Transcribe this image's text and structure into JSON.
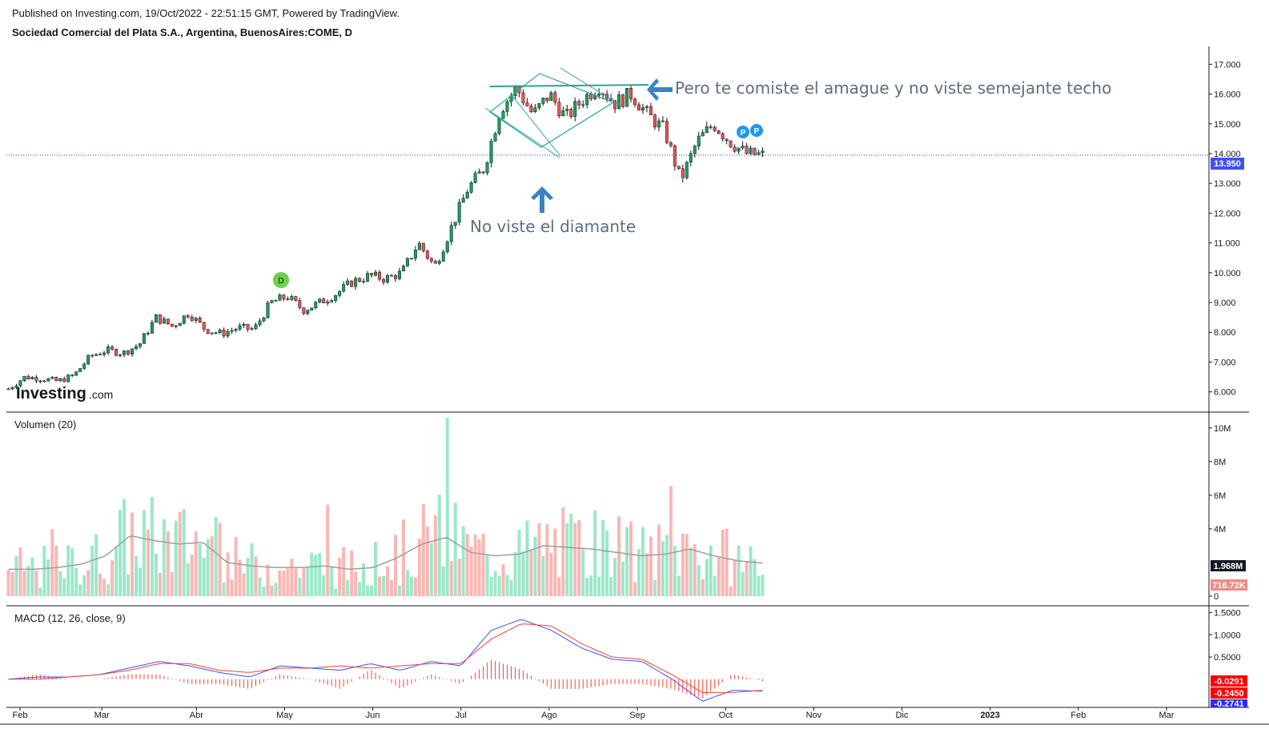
{
  "header": {
    "published": "Published on Investing.com, 19/Oct/2022 - 22:51:15 GMT, Powered by TradingView.",
    "symbol_title": "Sociedad Comercial del Plata S.A., Argentina, BuenosAires:COME, D"
  },
  "watermark": {
    "brand": "Investing",
    "suffix": ".com"
  },
  "colors": {
    "up": "#26a69a",
    "up_fill": "#1f9e5a",
    "down": "#ef5350",
    "volume_up": "#9be8c8",
    "volume_down": "#f9b7b5",
    "ma_line": "#9e9e9e",
    "macd_line": "#3f51f5",
    "signal_line": "#f44336",
    "price_line": "#2a3fd1",
    "annotation": "#3b82c4",
    "pattern": "#26a69a"
  },
  "chart_data": [
    {
      "type": "candlestick",
      "title": "Sociedad Comercial del Plata S.A., Argentina, BuenosAires:COME, D",
      "x_ticks": [
        "Feb",
        "Mar",
        "Abr",
        "May",
        "Jun",
        "Jul",
        "Ago",
        "Sep",
        "Oct",
        "Nov",
        "Dic",
        "2023",
        "Feb",
        "Mar"
      ],
      "y_ticks": [
        "17.000",
        "16.000",
        "15.000",
        "14.000",
        "13.000",
        "12.000",
        "11.000",
        "10.000",
        "9.000",
        "8.000",
        "7.000",
        "6.000"
      ],
      "ylim": [
        5.4,
        17.6
      ],
      "last_price": 13.95,
      "last_price_label": "13.950",
      "close_series": [
        6.1,
        6.5,
        6.45,
        6.35,
        6.55,
        7.2,
        7.4,
        7.3,
        7.6,
        8.5,
        8.2,
        8.65,
        8.1,
        7.95,
        8.15,
        8.1,
        9.0,
        9.2,
        8.75,
        9.0,
        9.3,
        9.7,
        9.9,
        9.8,
        10.0,
        11.0,
        10.2,
        11.5,
        12.8,
        13.5,
        15.5,
        16.2,
        15.3,
        16.0,
        15.2,
        15.8,
        16.3,
        15.7,
        16.0,
        15.3,
        14.8,
        13.1,
        14.4,
        15.0,
        14.4,
        14.0,
        13.95
      ],
      "annotations": [
        {
          "text": "Pero te comiste el amague y no viste semejante techo",
          "marker": "arrow-left"
        },
        {
          "text": "No viste el diamante",
          "marker": "arrow-up"
        }
      ],
      "markers": [
        "D",
        "P",
        "P"
      ]
    },
    {
      "type": "bar",
      "title": "Volumen (20)",
      "y_ticks": [
        "10M",
        "8M",
        "6M",
        "4M",
        "0"
      ],
      "ylim": [
        0,
        10.8
      ],
      "unit": "M",
      "moving_average_label": "1.968M",
      "last_volume_label": "716.72K",
      "moving_average": [
        1.6,
        1.6,
        1.7,
        1.9,
        2.4,
        3.6,
        3.3,
        3.1,
        3.2,
        2.0,
        1.8,
        1.7,
        1.7,
        1.8,
        1.6,
        1.7,
        2.3,
        3.1,
        3.5,
        2.6,
        2.4,
        2.5,
        3.0,
        2.9,
        2.8,
        2.6,
        2.4,
        2.5,
        2.8,
        2.4,
        2.1,
        1.968
      ]
    },
    {
      "type": "line",
      "title": "MACD (12, 26, close, 9)",
      "y_ticks": [
        "1.5000",
        "1.0000",
        "0.5000"
      ],
      "ylim": [
        -0.6,
        1.6
      ],
      "value_labels": [
        "-0.0291",
        "-0.2450",
        "-0.2741"
      ],
      "series": [
        {
          "values": [
            0.0,
            0.05,
            0.05,
            0.1,
            0.25,
            0.4,
            0.3,
            0.15,
            0.05,
            0.3,
            0.25,
            0.2,
            0.35,
            0.2,
            0.4,
            0.3,
            1.1,
            1.35,
            1.1,
            0.7,
            0.45,
            0.4,
            0.0,
            -0.5,
            -0.25,
            -0.27
          ]
        },
        {
          "values": [
            0.0,
            0.0,
            0.05,
            0.1,
            0.2,
            0.35,
            0.35,
            0.2,
            0.15,
            0.25,
            0.25,
            0.3,
            0.25,
            0.3,
            0.35,
            0.35,
            0.9,
            1.25,
            1.2,
            0.8,
            0.5,
            0.45,
            0.1,
            -0.3,
            -0.3,
            -0.25
          ]
        }
      ]
    }
  ]
}
